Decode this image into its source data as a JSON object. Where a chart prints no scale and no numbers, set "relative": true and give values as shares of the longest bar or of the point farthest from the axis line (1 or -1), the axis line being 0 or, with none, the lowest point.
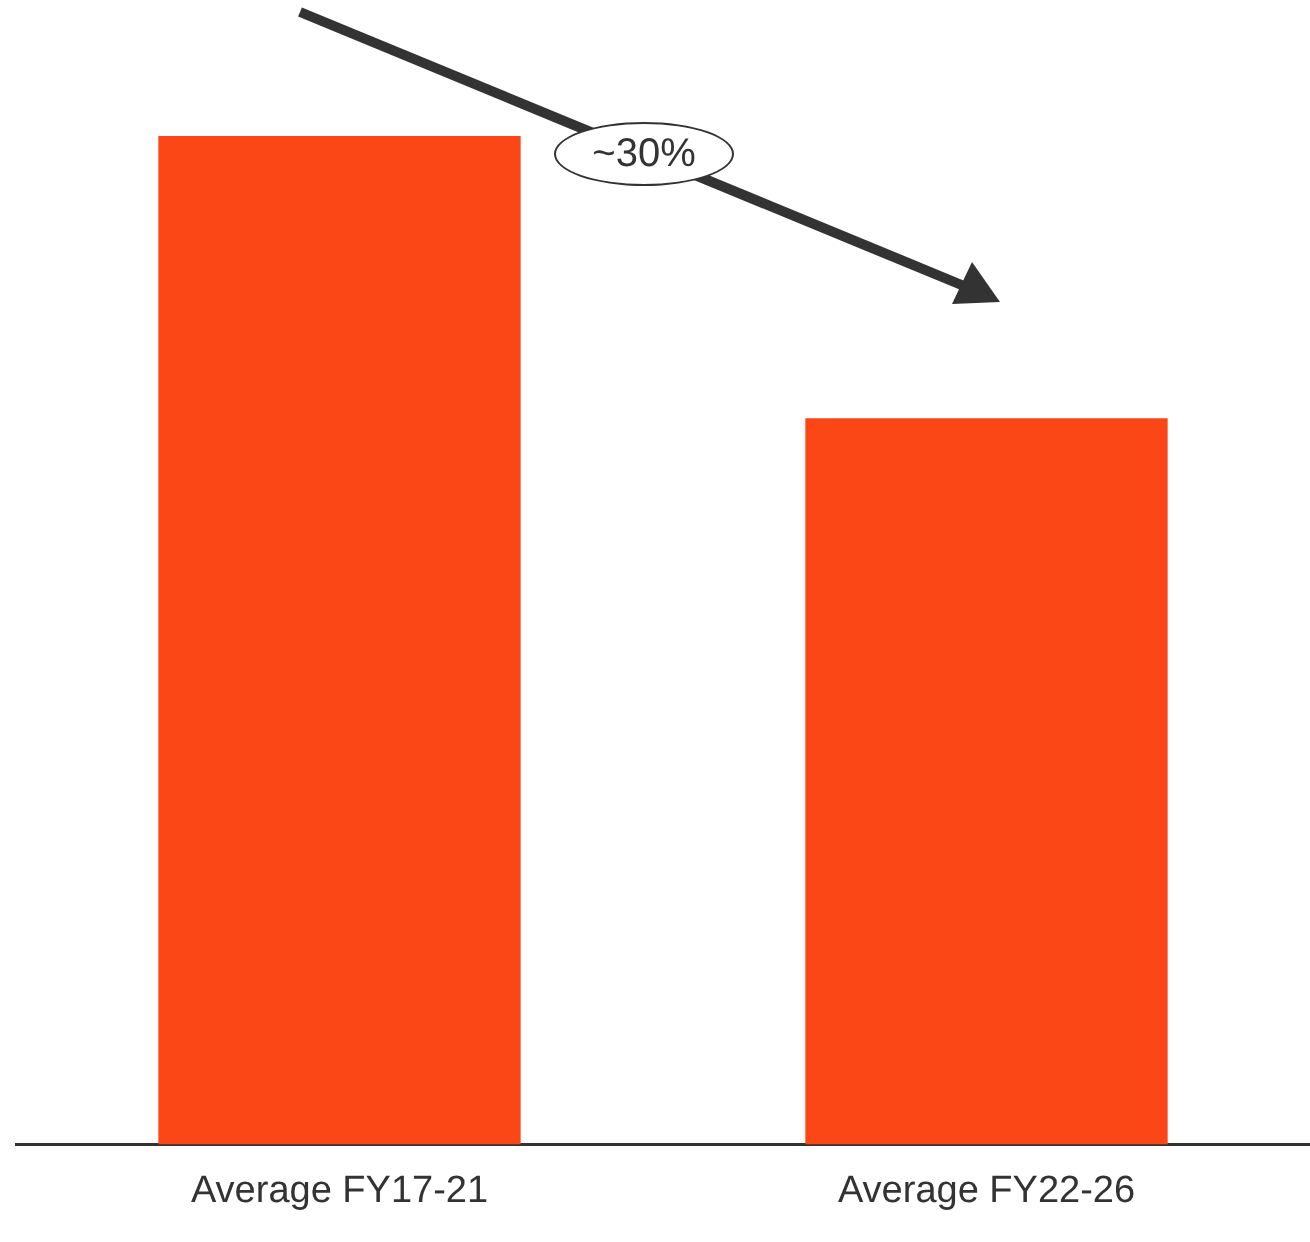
{
  "chart_data": {
    "type": "bar",
    "categories": [
      "Average FY17-21",
      "Average FY22-26"
    ],
    "values": [
      1,
      0.72
    ],
    "color": "#fb4616",
    "relative": true,
    "grid": false,
    "legend": false,
    "annotations": [
      "~30%"
    ]
  }
}
